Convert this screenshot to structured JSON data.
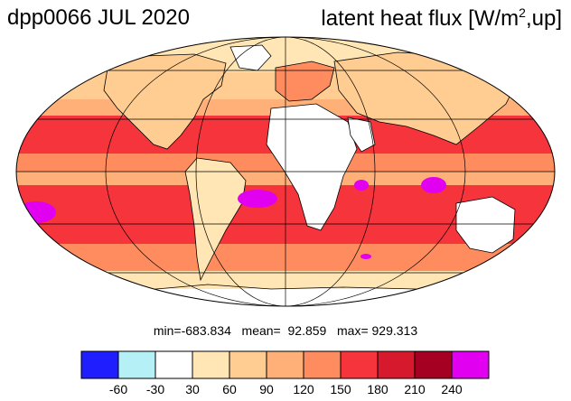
{
  "header": {
    "title_left": "dpp0066 JUL 2020",
    "title_right_prefix": "latent heat flux [W/m",
    "title_right_sup": "2",
    "title_right_suffix": ",up]"
  },
  "stats": {
    "text": "min=-683.834   mean=  92.859   max= 929.313"
  },
  "colorbar": {
    "colors": [
      "#1e1eff",
      "#b4f0f5",
      "#ffffff",
      "#ffe6b4",
      "#ffcd91",
      "#ffaf78",
      "#ff8c5f",
      "#f5343c",
      "#d7192d",
      "#a50021",
      "#e100f0"
    ],
    "tick_labels": [
      "-60",
      "-30",
      "30",
      "60",
      "90",
      "120",
      "150",
      "180",
      "210",
      "240"
    ]
  },
  "map": {
    "projection": "mollweide",
    "graticule_lat": [
      -60,
      -30,
      0,
      30,
      60
    ],
    "graticule_lon": [
      -120,
      -60,
      0,
      60,
      120
    ]
  }
}
